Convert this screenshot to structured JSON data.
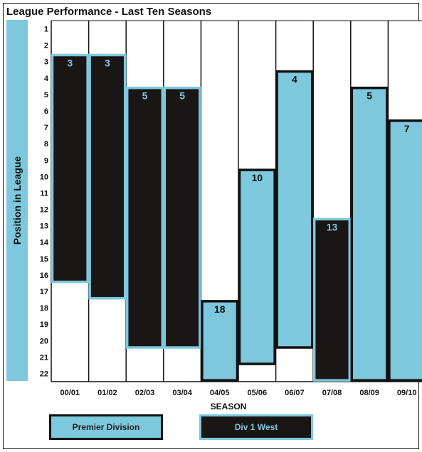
{
  "title": "League Performance - Last Ten Seasons",
  "colors": {
    "premier": "#7dc8dd",
    "div1": "#1a1616",
    "outline": "#111111"
  },
  "chart_data": {
    "type": "bar",
    "title": "League Performance - Last Ten Seasons",
    "xlabel": "SEASON",
    "ylabel": "Position in League",
    "y_inverted": true,
    "ylim": [
      1,
      22
    ],
    "yticks": [
      1,
      2,
      3,
      4,
      5,
      6,
      7,
      8,
      9,
      10,
      11,
      12,
      13,
      14,
      15,
      16,
      17,
      18,
      19,
      20,
      21,
      22
    ],
    "categories": [
      "00/01",
      "01/02",
      "02/03",
      "03/04",
      "04/05",
      "05/06",
      "06/07",
      "07/08",
      "08/09",
      "09/10"
    ],
    "values": [
      3,
      3,
      5,
      5,
      18,
      10,
      4,
      13,
      5,
      7
    ],
    "division": [
      "Div 1 West",
      "Div 1 West",
      "Div 1 West",
      "Div 1 West",
      "Premier Division",
      "Premier Division",
      "Premier Division",
      "Div 1 West",
      "Premier Division",
      "Premier Division"
    ],
    "league_size": [
      16,
      17,
      20,
      20,
      22,
      21,
      20,
      22,
      22,
      22
    ],
    "grid": true,
    "legend": {
      "placement": "bottom",
      "entries": [
        "Premier Division",
        "Div 1 West"
      ]
    }
  }
}
